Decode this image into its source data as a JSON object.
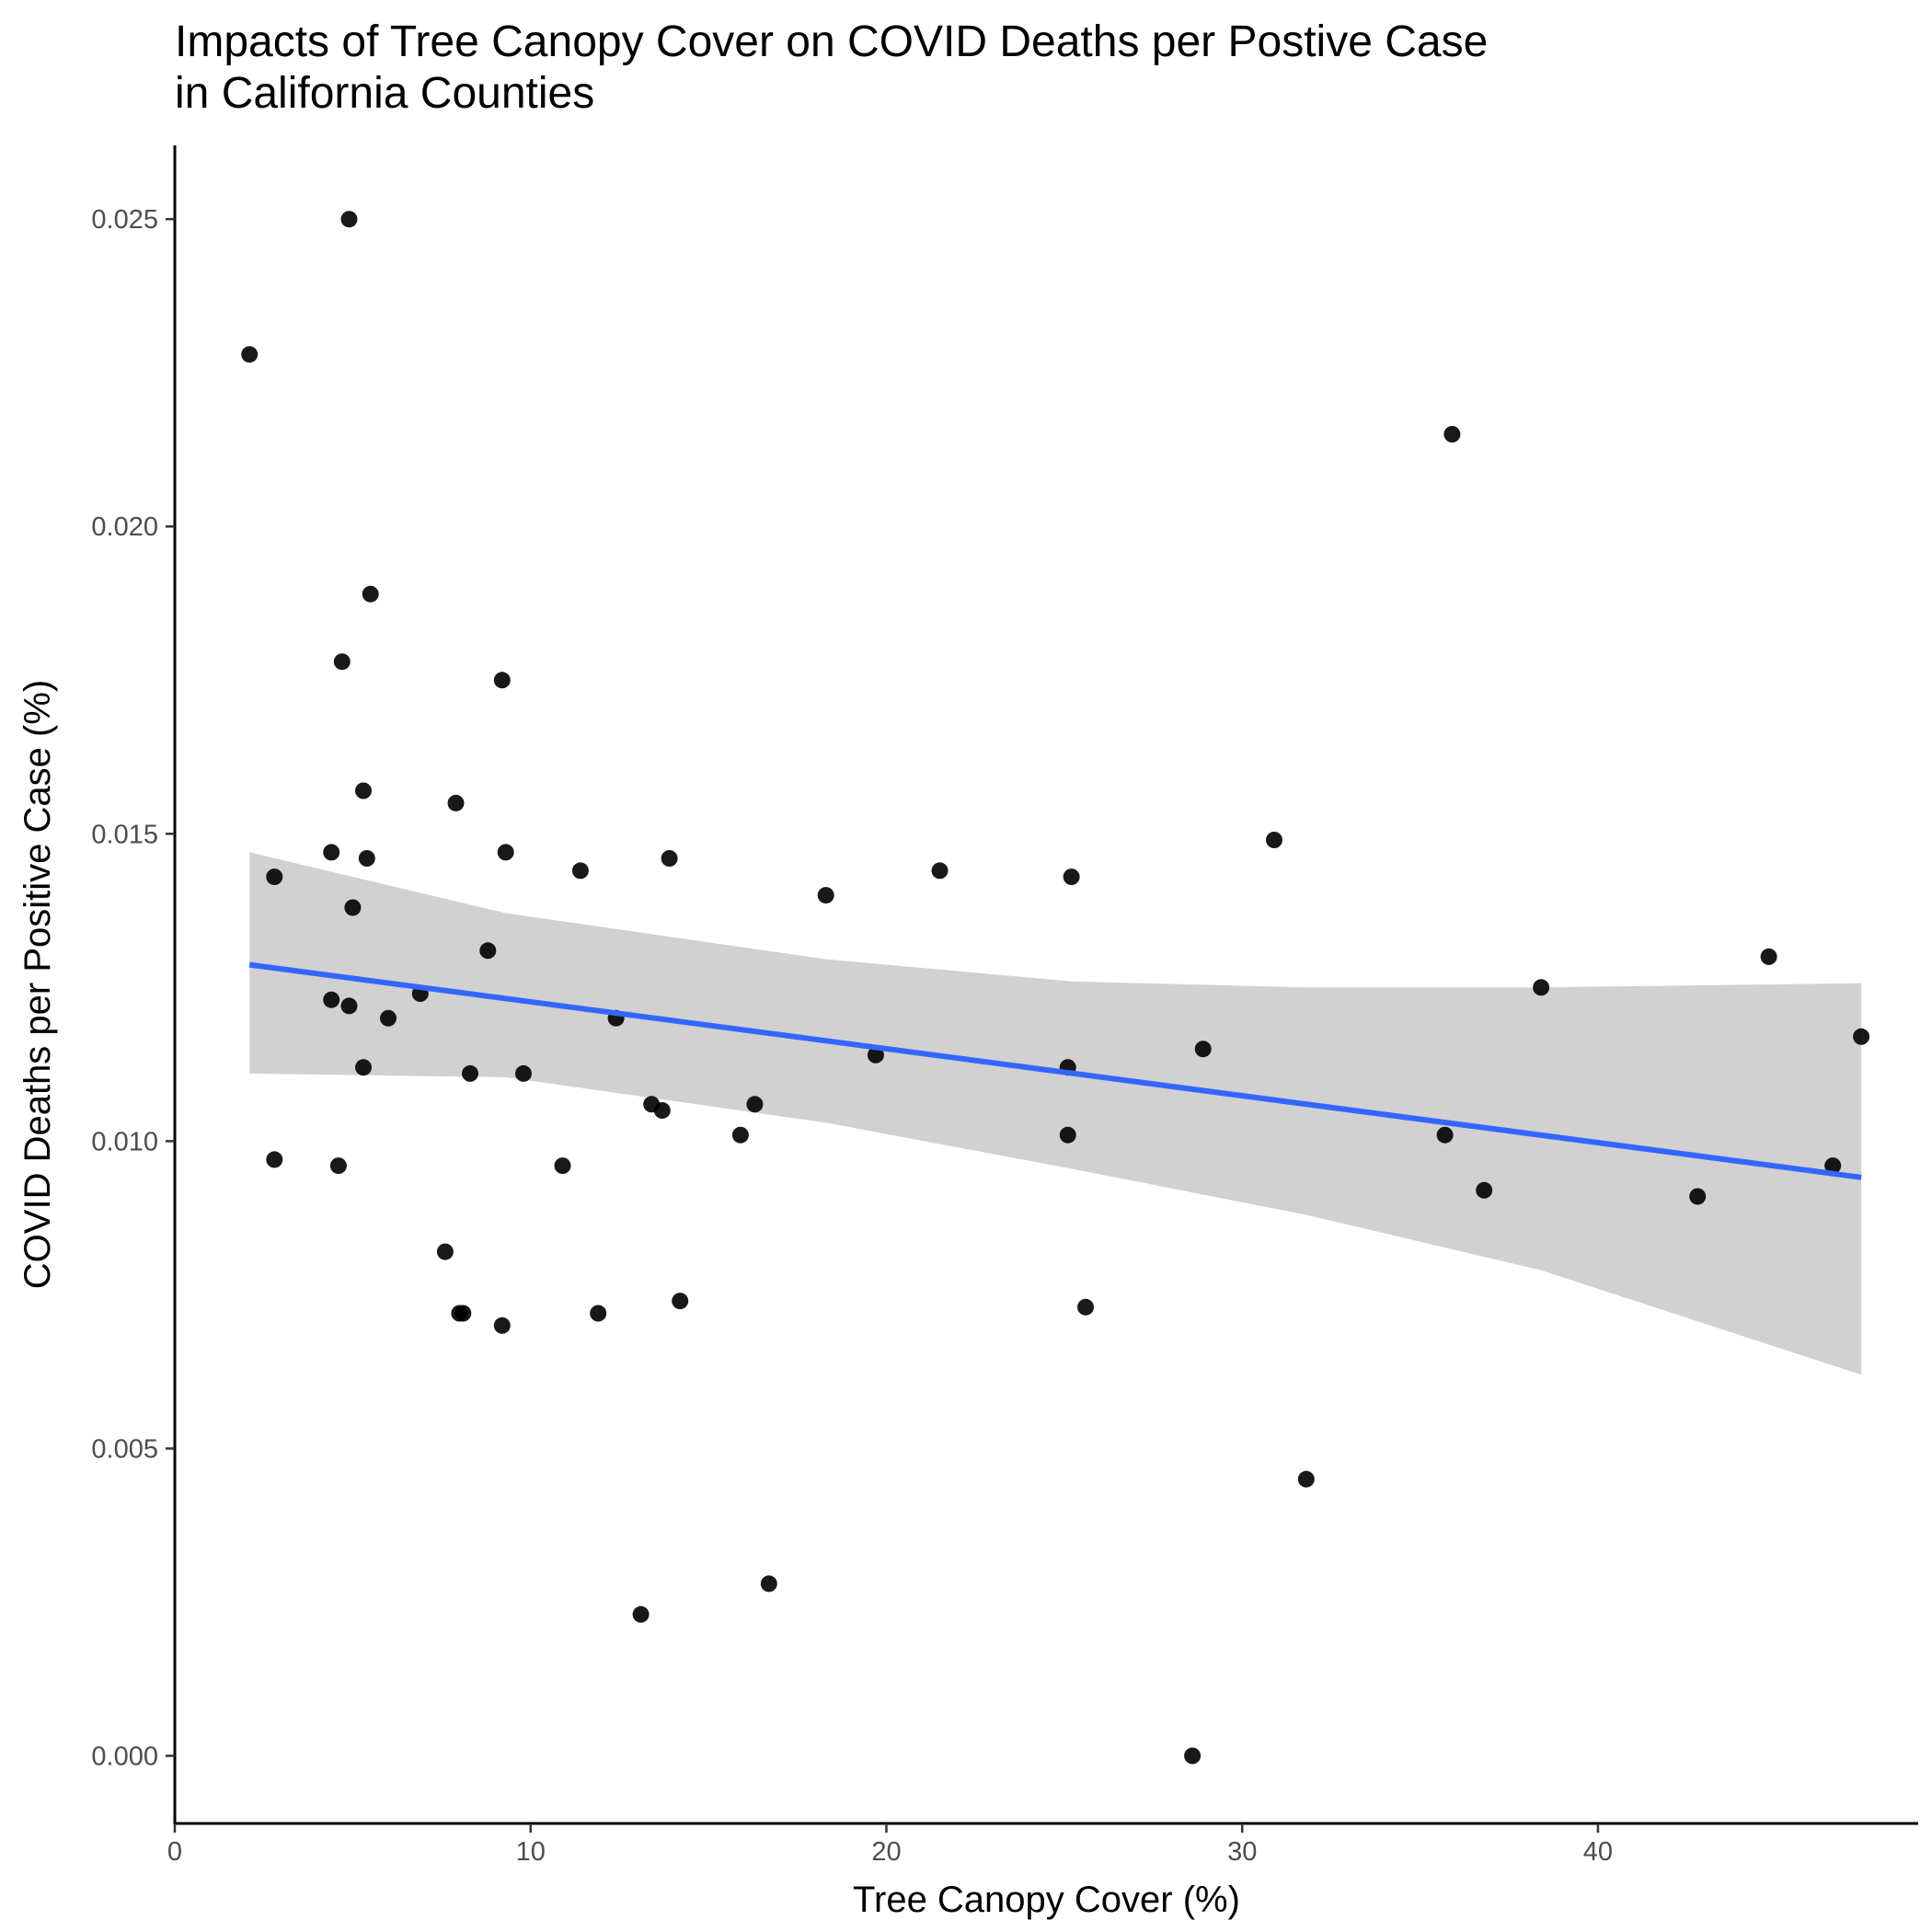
{
  "chart_data": {
    "type": "scatter",
    "title": "Impacts of Tree Canopy Cover on COVID Deaths per Postive Case\nin California Counties",
    "xlabel": "Tree Canopy Cover (%)",
    "ylabel": "COVID Deaths per Positive Case (%)",
    "xlim": [
      0,
      49
    ],
    "ylim": [
      -0.0011,
      0.0262
    ],
    "xticks": [
      "0",
      "10",
      "20",
      "30",
      "40"
    ],
    "yticks": [
      "0.000",
      "0.005",
      "0.010",
      "0.015",
      "0.020",
      "0.025"
    ],
    "xtick_values": [
      0,
      10,
      20,
      30,
      40
    ],
    "ytick_values": [
      0,
      0.005,
      0.01,
      0.015,
      0.02,
      0.025
    ],
    "grid": false,
    "points": [
      {
        "x": 2.1,
        "y": 0.0228
      },
      {
        "x": 4.9,
        "y": 0.025
      },
      {
        "x": 5.5,
        "y": 0.0189
      },
      {
        "x": 4.7,
        "y": 0.0178
      },
      {
        "x": 9.2,
        "y": 0.0175
      },
      {
        "x": 5.3,
        "y": 0.0157
      },
      {
        "x": 7.9,
        "y": 0.0155
      },
      {
        "x": 4.4,
        "y": 0.0147
      },
      {
        "x": 9.3,
        "y": 0.0147
      },
      {
        "x": 5.4,
        "y": 0.0146
      },
      {
        "x": 13.9,
        "y": 0.0146
      },
      {
        "x": 11.4,
        "y": 0.0144
      },
      {
        "x": 21.5,
        "y": 0.0144
      },
      {
        "x": 2.8,
        "y": 0.0143
      },
      {
        "x": 25.2,
        "y": 0.0143
      },
      {
        "x": 18.3,
        "y": 0.014
      },
      {
        "x": 30.9,
        "y": 0.0149
      },
      {
        "x": 5.0,
        "y": 0.0138
      },
      {
        "x": 8.8,
        "y": 0.0131
      },
      {
        "x": 44.8,
        "y": 0.013
      },
      {
        "x": 38.4,
        "y": 0.0125
      },
      {
        "x": 6.9,
        "y": 0.0124
      },
      {
        "x": 4.4,
        "y": 0.0123
      },
      {
        "x": 4.9,
        "y": 0.0122
      },
      {
        "x": 6.0,
        "y": 0.012
      },
      {
        "x": 12.4,
        "y": 0.012
      },
      {
        "x": 47.4,
        "y": 0.0117
      },
      {
        "x": 19.7,
        "y": 0.0114
      },
      {
        "x": 28.9,
        "y": 0.0115
      },
      {
        "x": 5.3,
        "y": 0.0112
      },
      {
        "x": 8.3,
        "y": 0.0111
      },
      {
        "x": 9.8,
        "y": 0.0111
      },
      {
        "x": 25.1,
        "y": 0.0112
      },
      {
        "x": 13.4,
        "y": 0.0106
      },
      {
        "x": 16.3,
        "y": 0.0106
      },
      {
        "x": 13.7,
        "y": 0.0105
      },
      {
        "x": 15.9,
        "y": 0.0101
      },
      {
        "x": 25.1,
        "y": 0.0101
      },
      {
        "x": 35.7,
        "y": 0.0101
      },
      {
        "x": 2.8,
        "y": 0.0097
      },
      {
        "x": 4.6,
        "y": 0.0096
      },
      {
        "x": 10.9,
        "y": 0.0096
      },
      {
        "x": 46.6,
        "y": 0.0096
      },
      {
        "x": 36.8,
        "y": 0.0092
      },
      {
        "x": 42.8,
        "y": 0.0091
      },
      {
        "x": 7.6,
        "y": 0.0082
      },
      {
        "x": 14.2,
        "y": 0.0074
      },
      {
        "x": 25.6,
        "y": 0.0073
      },
      {
        "x": 8.0,
        "y": 0.0072
      },
      {
        "x": 8.1,
        "y": 0.0072
      },
      {
        "x": 11.9,
        "y": 0.0072
      },
      {
        "x": 9.2,
        "y": 0.007
      },
      {
        "x": 31.8,
        "y": 0.0045
      },
      {
        "x": 16.7,
        "y": 0.0028
      },
      {
        "x": 13.1,
        "y": 0.0023
      },
      {
        "x": 28.6,
        "y": 0.0
      },
      {
        "x": 35.9,
        "y": 0.0215
      }
    ],
    "fit_line": {
      "x": [
        2.1,
        47.4
      ],
      "y": [
        0.01287,
        0.00941
      ],
      "color": "#3366FF"
    },
    "confidence_band": {
      "x": [
        2.1,
        9.3,
        18.3,
        25.2,
        31.8,
        38.4,
        47.4
      ],
      "upper": [
        0.0147,
        0.01371,
        0.01296,
        0.0126,
        0.0125,
        0.0125,
        0.01257
      ],
      "lower": [
        0.0111,
        0.01104,
        0.0103,
        0.00955,
        0.0088,
        0.0079,
        0.0062
      ],
      "color": "#cccccc"
    },
    "point_color": "#000000"
  }
}
